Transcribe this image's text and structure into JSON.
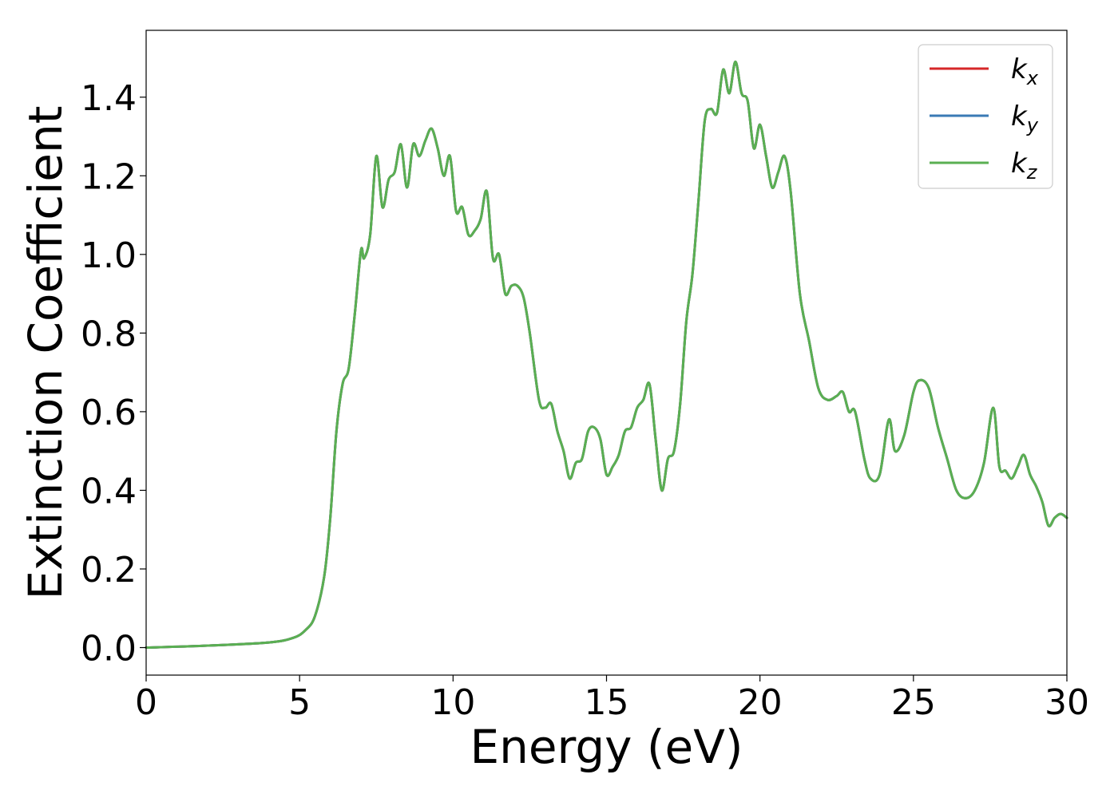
{
  "chart_data": {
    "type": "line",
    "title": "",
    "xlabel": "Energy (eV)",
    "ylabel": "Extinction Coefficient",
    "xlim": [
      0,
      30
    ],
    "ylim": [
      -0.07,
      1.57
    ],
    "xticks": [
      "0",
      "5",
      "10",
      "15",
      "20",
      "25",
      "30"
    ],
    "xtick_values": [
      0,
      5,
      10,
      15,
      20,
      25,
      30
    ],
    "yticks": [
      "0.0",
      "0.2",
      "0.4",
      "0.6",
      "0.8",
      "1.0",
      "1.2",
      "1.4"
    ],
    "ytick_values": [
      0.0,
      0.2,
      0.4,
      0.6,
      0.8,
      1.0,
      1.2,
      1.4
    ],
    "grid": false,
    "legend_position": "top-right",
    "legend": [
      {
        "symbol": "k",
        "subscript": "x",
        "color": "#d62728"
      },
      {
        "symbol": "k",
        "subscript": "y",
        "color": "#3a7ab5"
      },
      {
        "symbol": "k",
        "subscript": "z",
        "color": "#5aaf52"
      }
    ],
    "x": [
      0,
      2,
      4,
      4.8,
      5.2,
      5.5,
      5.8,
      6.0,
      6.2,
      6.4,
      6.6,
      6.8,
      7.0,
      7.1,
      7.3,
      7.5,
      7.7,
      7.9,
      8.1,
      8.3,
      8.5,
      8.7,
      8.9,
      9.1,
      9.3,
      9.5,
      9.7,
      9.9,
      10.1,
      10.3,
      10.5,
      10.7,
      10.9,
      11.1,
      11.3,
      11.5,
      11.7,
      11.9,
      12.1,
      12.3,
      12.5,
      12.8,
      13.0,
      13.2,
      13.4,
      13.6,
      13.8,
      14.0,
      14.2,
      14.4,
      14.6,
      14.8,
      15.0,
      15.2,
      15.4,
      15.6,
      15.8,
      16.0,
      16.2,
      16.4,
      16.6,
      16.8,
      17.0,
      17.2,
      17.4,
      17.6,
      17.8,
      18.0,
      18.2,
      18.4,
      18.6,
      18.8,
      19.0,
      19.2,
      19.4,
      19.6,
      19.8,
      20.0,
      20.2,
      20.4,
      20.6,
      20.8,
      21.0,
      21.3,
      21.6,
      21.9,
      22.2,
      22.5,
      22.7,
      22.9,
      23.1,
      23.4,
      23.6,
      23.9,
      24.2,
      24.4,
      24.7,
      25.0,
      25.2,
      25.5,
      25.8,
      26.1,
      26.4,
      26.7,
      27.0,
      27.3,
      27.6,
      27.8,
      28.0,
      28.2,
      28.4,
      28.6,
      28.8,
      29.0,
      29.2,
      29.4,
      29.6,
      29.8,
      30.0
    ],
    "series": [
      {
        "name": "k_x",
        "color": "#d62728"
      },
      {
        "name": "k_y",
        "color": "#3a7ab5"
      },
      {
        "name": "k_z",
        "color": "#5aaf52"
      }
    ],
    "y": [
      0.0,
      0.005,
      0.013,
      0.025,
      0.045,
      0.08,
      0.18,
      0.33,
      0.55,
      0.67,
      0.71,
      0.85,
      1.01,
      0.99,
      1.05,
      1.25,
      1.12,
      1.19,
      1.21,
      1.28,
      1.17,
      1.28,
      1.25,
      1.29,
      1.32,
      1.27,
      1.2,
      1.25,
      1.11,
      1.12,
      1.05,
      1.06,
      1.09,
      1.16,
      0.99,
      1.0,
      0.9,
      0.92,
      0.92,
      0.89,
      0.8,
      0.63,
      0.61,
      0.62,
      0.55,
      0.5,
      0.43,
      0.47,
      0.48,
      0.55,
      0.56,
      0.53,
      0.44,
      0.46,
      0.49,
      0.55,
      0.56,
      0.61,
      0.63,
      0.67,
      0.53,
      0.4,
      0.48,
      0.5,
      0.62,
      0.83,
      0.95,
      1.14,
      1.34,
      1.37,
      1.36,
      1.47,
      1.41,
      1.49,
      1.41,
      1.39,
      1.27,
      1.33,
      1.25,
      1.17,
      1.21,
      1.25,
      1.16,
      0.9,
      0.78,
      0.66,
      0.63,
      0.64,
      0.65,
      0.6,
      0.6,
      0.48,
      0.43,
      0.44,
      0.58,
      0.5,
      0.54,
      0.65,
      0.68,
      0.66,
      0.56,
      0.48,
      0.4,
      0.38,
      0.4,
      0.47,
      0.61,
      0.46,
      0.45,
      0.43,
      0.46,
      0.49,
      0.44,
      0.41,
      0.37,
      0.31,
      0.33,
      0.34,
      0.33
    ]
  }
}
